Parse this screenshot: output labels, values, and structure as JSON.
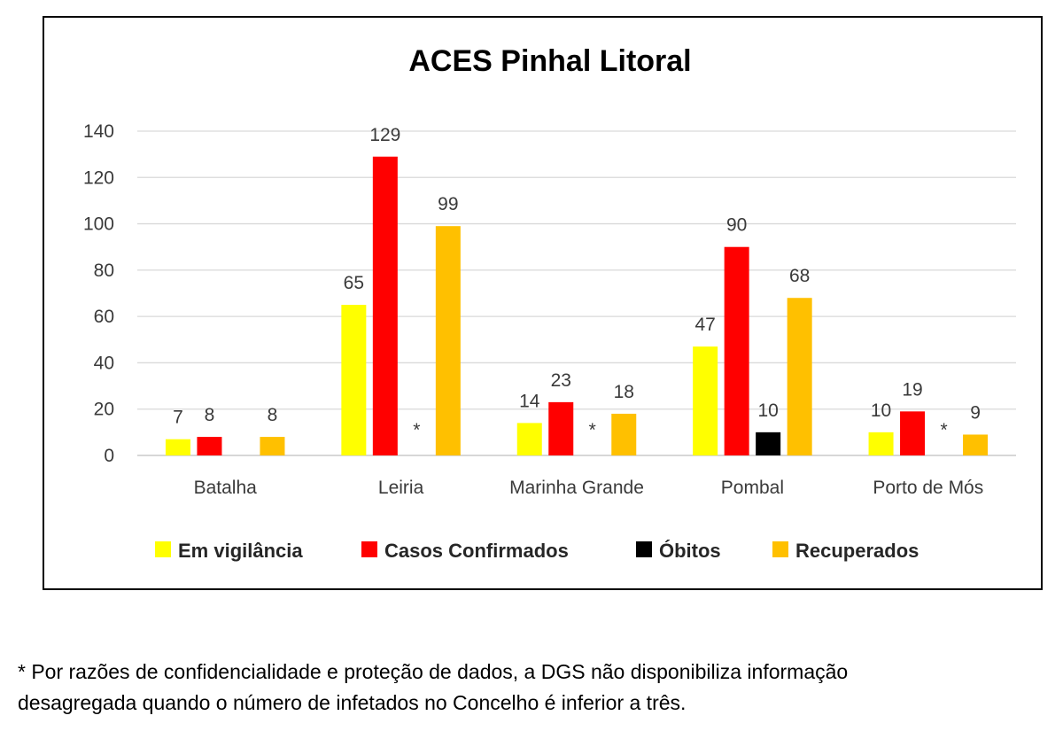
{
  "chart_data": {
    "type": "bar",
    "title": "ACES Pinhal Litoral",
    "categories": [
      "Batalha",
      "Leiria",
      "Marinha Grande",
      "Pombal",
      "Porto de Mós"
    ],
    "series": [
      {
        "name": "Em vigilância",
        "color": "#ffff00",
        "values": [
          7,
          65,
          14,
          47,
          10
        ]
      },
      {
        "name": "Casos Confirmados",
        "color": "#ff0000",
        "values": [
          8,
          129,
          23,
          90,
          19
        ]
      },
      {
        "name": "Óbitos",
        "color": "#000000",
        "values": [
          null,
          null,
          null,
          10,
          null
        ]
      },
      {
        "name": "Recuperados",
        "color": "#ffc000",
        "values": [
          8,
          99,
          18,
          68,
          9
        ]
      }
    ],
    "suppressed_marker": "*",
    "suppressed": [
      {
        "category": "Leiria",
        "series": "Óbitos"
      },
      {
        "category": "Marinha Grande",
        "series": "Óbitos"
      },
      {
        "category": "Porto de Mós",
        "series": "Óbitos"
      }
    ],
    "ylim": [
      0,
      140
    ],
    "yticks": [
      0,
      20,
      40,
      60,
      80,
      100,
      120,
      140
    ],
    "grid": true,
    "legend_position": "bottom",
    "xlabel": "",
    "ylabel": ""
  },
  "footnote": {
    "line1": "* Por razões de confidencialidade e proteção de dados, a DGS não disponibiliza informação",
    "line2": "desagregada quando o número de infetados no Concelho é inferior a três."
  }
}
